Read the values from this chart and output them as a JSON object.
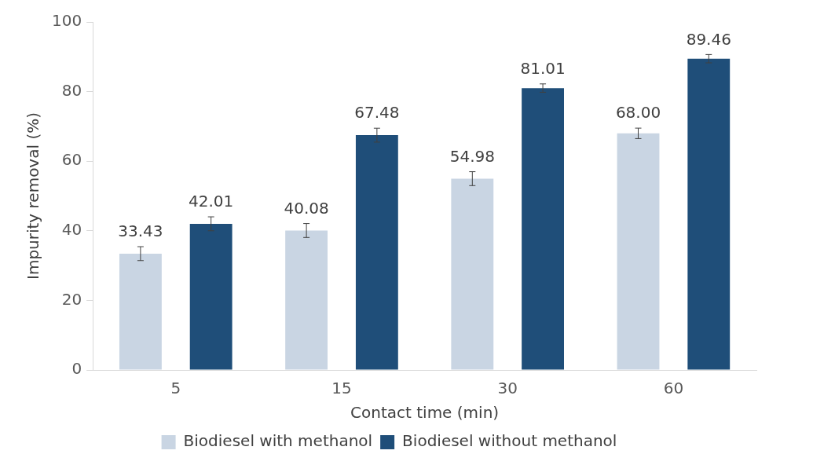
{
  "chart_data": {
    "type": "bar",
    "xlabel": "Contact time (min)",
    "ylabel": "Impurity removal (%)",
    "categories": [
      "5",
      "15",
      "30",
      "60"
    ],
    "series": [
      {
        "name": "Biodiesel with methanol",
        "color": "#c9d5e3",
        "values": [
          33.43,
          40.08,
          54.98,
          68.0
        ],
        "value_labels": [
          "33.43",
          "40.08",
          "54.98",
          "68.00"
        ],
        "errors": [
          2,
          2,
          2,
          1.5
        ]
      },
      {
        "name": "Biodiesel without methanol",
        "color": "#1f4e79",
        "values": [
          42.01,
          67.48,
          81.01,
          89.46
        ],
        "value_labels": [
          "42.01",
          "67.48",
          "81.01",
          "89.46"
        ],
        "errors": [
          2,
          2,
          1.2,
          1.2
        ]
      }
    ],
    "ylim": [
      0,
      100
    ],
    "yticks": [
      0,
      20,
      40,
      60,
      80,
      100
    ],
    "grid": false,
    "legend": "bottom"
  }
}
